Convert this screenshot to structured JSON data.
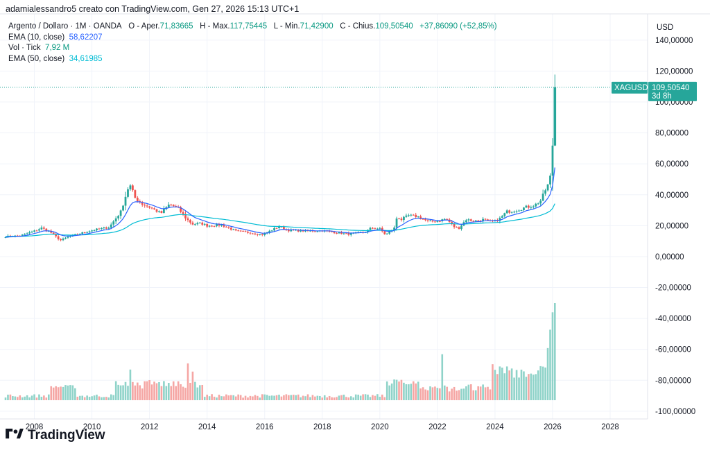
{
  "caption": "adamialessandro5 creato con TradingView.com, Gen 27, 2026 15:13 UTC+1",
  "legend": {
    "symbol": "Argento / Dollaro · 1M · OANDA",
    "open_label": "O - Aper.",
    "open_value": "71,83665",
    "high_label": "H - Max.",
    "high_value": "117,75445",
    "low_label": "L - Min.",
    "low_value": "71,42900",
    "close_label": "C - Chius.",
    "close_value": "109,50540",
    "change": "+37,86090 (+52,85%)",
    "ema10_label": "EMA (10, close)",
    "ema10_value": "58,62207",
    "vol_label": "Vol · Tick",
    "vol_value": "7,92 M",
    "ema50_label": "EMA (50, close)",
    "ema50_value": "34,61985"
  },
  "branding": {
    "name": "TradingView"
  },
  "colors": {
    "up": "#26a69a",
    "down": "#ef5350",
    "vol_up": "#8fd3c9",
    "vol_down": "#f5a6a4",
    "ema10": "#2962ff",
    "ema50": "#00bcd4",
    "grid": "#f0f3fa"
  },
  "chart_data": {
    "type": "candlestick",
    "symbol": "XAGUSD",
    "currency": "USD",
    "price_badge": {
      "symbol": "XAGUSD",
      "price": "109,50540",
      "countdown": "3d 8h",
      "value": 109.5054
    },
    "y_axis": {
      "min": -105,
      "max": 157,
      "ticks": [
        140,
        120,
        100,
        80,
        60,
        40,
        20,
        0,
        -20,
        -40,
        -60,
        -80,
        -100
      ],
      "tick_labels": [
        "140,00000",
        "120,00000",
        "100,00000",
        "80,00000",
        "60,00000",
        "40,00000",
        "20,00000",
        "0,00000",
        "-20,00000",
        "-40,00000",
        "-60,00000",
        "-80,00000",
        "-100,00000"
      ]
    },
    "x_axis": {
      "start": 2007.0,
      "end": 2029.3,
      "ticks": [
        2008,
        2010,
        2012,
        2014,
        2016,
        2018,
        2020,
        2022,
        2024,
        2026,
        2028
      ],
      "tick_labels": [
        "2008",
        "2010",
        "2012",
        "2014",
        "2016",
        "2018",
        "2020",
        "2022",
        "2024",
        "2026",
        "2028"
      ]
    },
    "close_anchors": [
      [
        2007.0,
        13.0
      ],
      [
        2007.5,
        13.5
      ],
      [
        2008.0,
        16.5
      ],
      [
        2008.25,
        18.5
      ],
      [
        2008.55,
        16.0
      ],
      [
        2008.9,
        10.5
      ],
      [
        2009.2,
        13.0
      ],
      [
        2009.6,
        15.0
      ],
      [
        2010.0,
        17.0
      ],
      [
        2010.6,
        19.0
      ],
      [
        2010.8,
        24.0
      ],
      [
        2011.0,
        29.0
      ],
      [
        2011.3,
        47.0
      ],
      [
        2011.5,
        38.0
      ],
      [
        2011.75,
        34.0
      ],
      [
        2012.0,
        32.0
      ],
      [
        2012.4,
        28.0
      ],
      [
        2012.7,
        34.0
      ],
      [
        2013.0,
        31.0
      ],
      [
        2013.3,
        24.0
      ],
      [
        2013.5,
        21.0
      ],
      [
        2013.8,
        21.5
      ],
      [
        2014.0,
        20.0
      ],
      [
        2014.5,
        20.5
      ],
      [
        2015.0,
        16.5
      ],
      [
        2015.5,
        15.5
      ],
      [
        2015.9,
        14.0
      ],
      [
        2016.5,
        19.5
      ],
      [
        2016.8,
        17.0
      ],
      [
        2017.0,
        17.0
      ],
      [
        2017.5,
        16.5
      ],
      [
        2018.0,
        16.8
      ],
      [
        2018.5,
        15.5
      ],
      [
        2018.9,
        14.5
      ],
      [
        2019.5,
        16.0
      ],
      [
        2019.7,
        18.5
      ],
      [
        2020.0,
        18.0
      ],
      [
        2020.2,
        14.0
      ],
      [
        2020.5,
        18.5
      ],
      [
        2020.6,
        26.0
      ],
      [
        2020.75,
        24.0
      ],
      [
        2021.0,
        26.5
      ],
      [
        2021.3,
        26.0
      ],
      [
        2021.7,
        22.5
      ],
      [
        2022.0,
        23.0
      ],
      [
        2022.3,
        24.5
      ],
      [
        2022.6,
        19.0
      ],
      [
        2022.75,
        18.5
      ],
      [
        2023.0,
        24.0
      ],
      [
        2023.3,
        23.0
      ],
      [
        2023.6,
        24.0
      ],
      [
        2023.8,
        22.5
      ],
      [
        2024.0,
        23.0
      ],
      [
        2024.2,
        25.0
      ],
      [
        2024.4,
        29.0
      ],
      [
        2024.7,
        30.0
      ],
      [
        2024.9,
        31.0
      ],
      [
        2025.2,
        32.5
      ],
      [
        2025.4,
        33.5
      ],
      [
        2025.6,
        36.5
      ],
      [
        2025.8,
        45.0
      ],
      [
        2025.9,
        50.0
      ],
      [
        2025.95,
        57.0
      ],
      [
        2026.0,
        71.8
      ],
      [
        2026.08,
        109.5
      ]
    ],
    "last_candle": {
      "open": 71.83665,
      "high": 117.75445,
      "low": 71.429,
      "close": 109.5054
    },
    "volume_spikes": [
      [
        2011.3,
        3.0
      ],
      [
        2013.3,
        3.6
      ],
      [
        2013.5,
        2.8
      ],
      [
        2020.6,
        2.0
      ],
      [
        2022.2,
        4.5
      ],
      [
        2024.2,
        3.3
      ],
      [
        2024.6,
        3.1
      ],
      [
        2025.3,
        2.5
      ],
      [
        2025.75,
        3.2
      ],
      [
        2025.85,
        5.1
      ],
      [
        2025.92,
        6.9
      ],
      [
        2025.97,
        7.9
      ],
      [
        2026.03,
        8.6
      ],
      [
        2026.08,
        9.5
      ]
    ],
    "ema10_last": 58.62207,
    "ema50_last": 34.61985
  }
}
